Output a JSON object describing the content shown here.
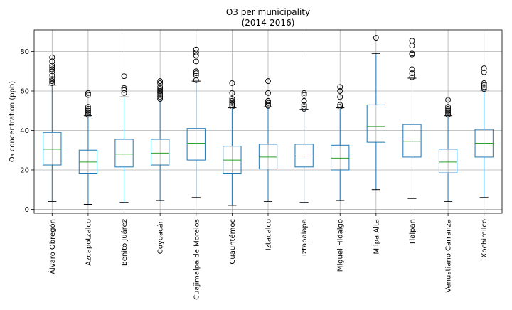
{
  "chart_data": {
    "type": "boxplot",
    "title": "O3 per municipality",
    "subtitle": "(2014-2016)",
    "xlabel": "",
    "ylabel": "O₃ concentration (ppb)",
    "ylim": [
      -2,
      91
    ],
    "yticks": [
      0,
      20,
      40,
      60,
      80
    ],
    "grid": true,
    "legend": "none",
    "colors": {
      "box": "#1f77b4",
      "median": "#2ca02c",
      "flier": "#000000",
      "grid": "#b0b0b0"
    },
    "categories": [
      "Álvaro Obregón",
      "Azcapotzalco",
      "Benito Juárez",
      "Coyoacán",
      "Cuajimalpa de Morelos",
      "Cuauhtémoc",
      "Iztacalco",
      "Iztapalapa",
      "Miguel Hidalgo",
      "Milpa Alta",
      "Tlalpan",
      "Venustiano Carranza",
      "Xochimilco"
    ],
    "boxes": [
      {
        "min": 4,
        "q1": 22.5,
        "median": 30.5,
        "q3": 39,
        "max": 63,
        "fliers": [
          64,
          65,
          66,
          68,
          70,
          71,
          72,
          73,
          75,
          77
        ]
      },
      {
        "min": 2.5,
        "q1": 18,
        "median": 24,
        "q3": 30,
        "max": 47.5,
        "fliers": [
          48,
          49,
          50,
          51,
          52,
          58,
          59
        ]
      },
      {
        "min": 3.5,
        "q1": 21.5,
        "median": 28,
        "q3": 35.5,
        "max": 57,
        "fliers": [
          59,
          60.5,
          61.5,
          67.5
        ]
      },
      {
        "min": 4.5,
        "q1": 22.5,
        "median": 28.5,
        "q3": 35.5,
        "max": 55.5,
        "fliers": [
          56,
          57,
          58,
          59,
          60,
          61,
          62,
          64,
          65
        ]
      },
      {
        "min": 6,
        "q1": 25,
        "median": 33.5,
        "q3": 41,
        "max": 65,
        "fliers": [
          65.5,
          68,
          69,
          70,
          75,
          78,
          79.5,
          81
        ]
      },
      {
        "min": 2,
        "q1": 18,
        "median": 25,
        "q3": 32,
        "max": 51.5,
        "fliers": [
          52,
          53,
          54,
          55,
          56,
          59,
          64
        ]
      },
      {
        "min": 4,
        "q1": 20.5,
        "median": 26.5,
        "q3": 33,
        "max": 52,
        "fliers": [
          52.5,
          53,
          54,
          55,
          59,
          65
        ]
      },
      {
        "min": 3.5,
        "q1": 21.5,
        "median": 27,
        "q3": 33,
        "max": 50.5,
        "fliers": [
          51,
          52,
          53,
          55,
          58,
          59
        ]
      },
      {
        "min": 4.5,
        "q1": 20,
        "median": 26,
        "q3": 32.5,
        "max": 51.5,
        "fliers": [
          52,
          53,
          57,
          60,
          62
        ]
      },
      {
        "min": 10,
        "q1": 34,
        "median": 42,
        "q3": 53,
        "max": 79,
        "fliers": [
          87
        ]
      },
      {
        "min": 5.5,
        "q1": 26.5,
        "median": 34.5,
        "q3": 43,
        "max": 66.5,
        "fliers": [
          67,
          69,
          71,
          78.5,
          79,
          83,
          85.5
        ]
      },
      {
        "min": 4,
        "q1": 18.5,
        "median": 24,
        "q3": 30.5,
        "max": 47.5,
        "fliers": [
          48,
          49,
          50,
          51,
          52,
          55.5
        ]
      },
      {
        "min": 6,
        "q1": 26.5,
        "median": 33.5,
        "q3": 40.5,
        "max": 60.5,
        "fliers": [
          61,
          62,
          63,
          64,
          69.5,
          71.5
        ]
      }
    ]
  }
}
